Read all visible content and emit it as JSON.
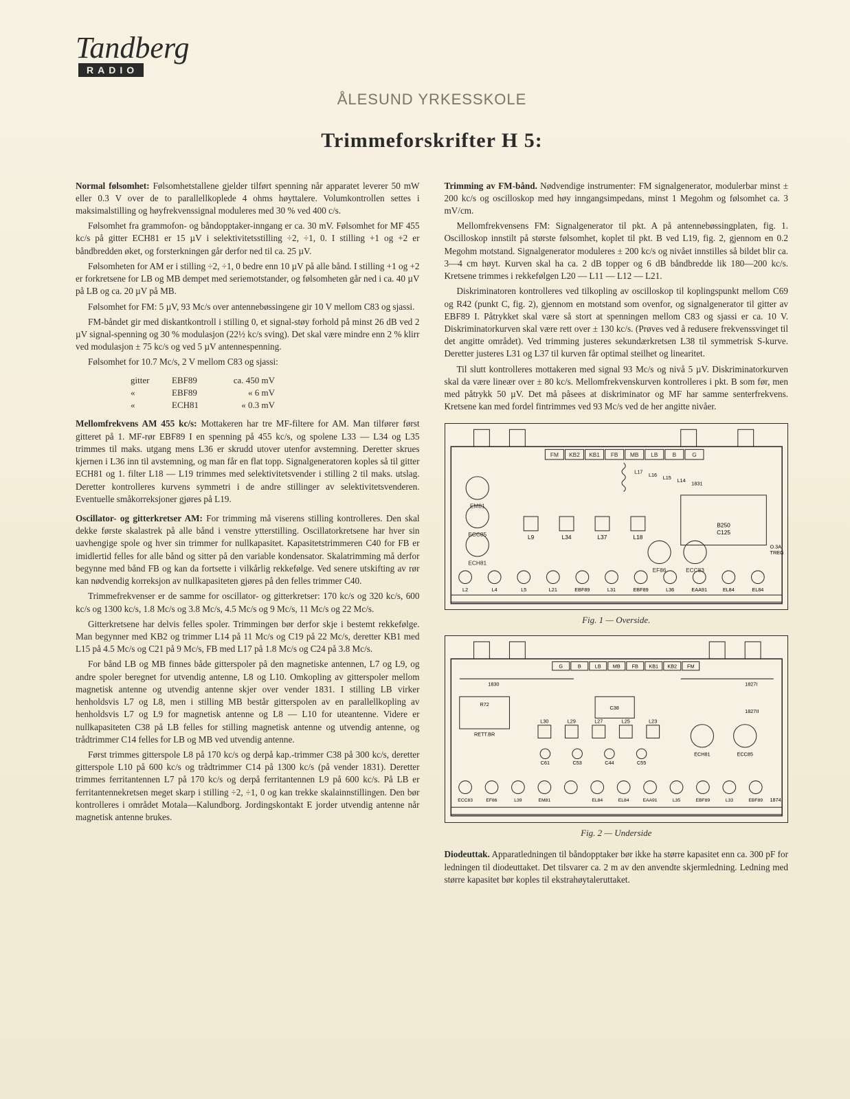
{
  "logo": {
    "brand": "Tandberg",
    "sub": "RADIO"
  },
  "school": "ÅLESUND YRKESSKOLE",
  "title": "Trimmeforskrifter H 5:",
  "left": {
    "h1": "Normal følsomhet:",
    "p1a": " Følsomhetstallene gjelder tilført spenning når apparatet leverer 50 mW eller 0.3 V over de to parallellkoplede 4 ohms høyttalere. Volumkontrollen settes i maksimalstilling og høyfrekvenssignal moduleres med 30 % ved 400 c/s.",
    "p1b": "Følsomhet fra grammofon- og båndopptaker-inngang er ca. 30 mV. Følsomhet for MF 455 kc/s på gitter ECH81 er 15 µV i selektivitetsstilling ÷2, ÷1, 0. I stilling +1 og +2 er båndbredden øket, og forsterkningen går derfor ned til ca. 25 µV.",
    "p1c": "Følsomheten for AM er i stilling ÷2, ÷1, 0 bedre enn 10 µV på alle bånd. I stilling +1 og +2 er forkretsene for LB og MB dempet med seriemotstander, og følsomheten går ned i ca. 40 µV på LB og ca. 20 µV på MB.",
    "p1d": "Følsomhet for FM: 5 µV, 93 Mc/s over antennebøssingene gir 10 V mellom C83 og sjassi.",
    "p1e": "FM-båndet gir med diskantkontroll i stilling 0, et signal-støy forhold på minst 26 dB ved 2 µV signal-spenning og 30 % modulasjon (22½ kc/s sving). Det skal være mindre enn 2 % klirr ved modulasjon ± 75 kc/s og ved 5 µV antennespenning.",
    "p1f": "Følsomhet for 10.7 Mc/s, 2 V mellom C83 og sjassi:",
    "tbl": [
      [
        "gitter",
        "EBF89",
        "ca. 450 mV"
      ],
      [
        "«",
        "EBF89",
        "«    6 mV"
      ],
      [
        "«",
        "ECH81",
        "«   0.3 mV"
      ]
    ],
    "h2": "Mellomfrekvens AM 455 kc/s:",
    "p2": " Mottakeren har tre MF-filtere for AM. Man tilfører først gitteret på 1. MF-rør EBF89 I en spenning på 455 kc/s, og spolene L33 — L34 og L35 trimmes til maks. utgang mens L36 er skrudd utover utenfor avstemning. Deretter skrues kjernen i L36 inn til avstemning, og man får en flat topp. Signalgeneratoren koples så til gitter ECH81 og 1. filter L18 — L19 trimmes med selektivitetsvender i stilling 2 til maks. utslag. Deretter kontrolleres kurvens symmetri i de andre stillinger av selektivitetsvenderen. Eventuelle småkorreksjoner gjøres på L19.",
    "h3": "Oscillator- og gitterkretser AM:",
    "p3a": " For trimming må viserens stilling kontrolleres. Den skal dekke første skalastrek på alle bånd i venstre ytterstilling. Oscillatorkretsene har hver sin uavhengige spole og hver sin trimmer for nullkapasitet. Kapasitetstrimmeren C40 for FB er imidlertid felles for alle bånd og sitter på den variable kondensator. Skalatrimming må derfor begynne med bånd FB og kan da fortsette i vilkårlig rekkefølge. Ved senere utskifting av rør kan nødvendig korreksjon av nullkapasiteten gjøres på den felles trimmer C40.",
    "p3b": "Trimmefrekvenser er de samme for oscillator- og gitterkretser: 170 kc/s og 320 kc/s, 600 kc/s og 1300 kc/s, 1.8 Mc/s og 3.8 Mc/s, 4.5 Mc/s og 9 Mc/s, 11 Mc/s og 22 Mc/s.",
    "p3c": "Gitterkretsene har delvis felles spoler. Trimmingen bør derfor skje i bestemt rekkefølge. Man begynner med KB2 og trimmer L14 på 11 Mc/s og C19 på 22 Mc/s, deretter KB1 med L15 på 4.5 Mc/s og C21 på 9 Mc/s, FB med L17 på 1.8 Mc/s og C24 på 3.8 Mc/s.",
    "p3d": "For bånd LB og MB finnes både gitterspoler på den magnetiske antennen, L7 og L9, og andre spoler beregnet for utvendig antenne, L8 og L10. Omkopling av gitterspoler mellom magnetisk antenne og utvendig antenne skjer over vender 1831. I stilling LB virker henholdsvis L7 og L8, men i stilling MB består gitterspolen av en parallellkopling av henholdsvis L7 og L9 for magnetisk antenne og L8 — L10 for uteantenne. Videre er nullkapasiteten C38 på LB felles for stilling magnetisk antenne og utvendig antenne, og trådtrimmer C14 felles for LB og MB ved utvendig antenne.",
    "p3e": "Først trimmes gitterspole L8 på 170 kc/s og derpå kap.-trimmer C38 på 300 kc/s, deretter gitterspole L10 på 600 kc/s og trådtrimmer C14 på 1300 kc/s (på vender 1831). Deretter trimmes ferritantennen L7 på 170 kc/s og derpå ferritantennen L9 på 600 kc/s. På LB er ferritantennekretsen meget skarp i stilling ÷2, ÷1, 0 og kan trekke skalainnstillingen. Den bør kontrolleres i området Motala—Kalundborg. Jordingskontakt E jorder utvendig antenne når magnetisk antenne brukes."
  },
  "right": {
    "h1": "Trimming av FM-bånd.",
    "p1a": " Nødvendige instrumenter: FM signalgenerator, modulerbar minst ± 200 kc/s og oscilloskop med høy inngangsimpedans, minst 1 Megohm og følsomhet ca. 3 mV/cm.",
    "p1b": "Mellomfrekvensens FM: Signalgenerator til pkt. A på antennebøssingplaten, fig. 1. Oscilloskop innstilt på største følsomhet, koplet til pkt. B ved L19, fig. 2, gjennom en 0.2 Megohm motstand. Signalgenerator moduleres ± 200 kc/s og nivået innstilles så bildet blir ca. 3—4 cm høyt. Kurven skal ha ca. 2 dB topper og 6 dB båndbredde lik 180—200 kc/s. Kretsene trimmes i rekkefølgen L20 — L11 — L12 — L21.",
    "p1c": "Diskriminatoren kontrolleres ved tilkopling av oscilloskop til koplingspunkt mellom C69 og R42 (punkt C, fig. 2), gjennom en motstand som ovenfor, og signalgenerator til gitter av EBF89 I. Påtrykket skal være så stort at spenningen mellom C83 og sjassi er ca. 10 V. Diskriminatorkurven skal være rett over ± 130 kc/s. (Prøves ved å redusere frekvenssvinget til det angitte området). Ved trimming justeres sekundærkretsen L38 til symmetrisk S-kurve. Deretter justeres L31 og L37 til kurven får optimal steilhet og linearitet.",
    "p1d": "Til slutt kontrolleres mottakeren med signal 93 Mc/s og nivå 5 µV. Diskriminatorkurven skal da være lineær over ± 80 kc/s. Mellomfrekvenskurven kontrolleres i pkt. B som før, men med påtrykk 50 µV. Det må påsees at diskriminator og MF har samme senterfrekvens. Kretsene kan med fordel fintrimmes ved 93 Mc/s ved de her angitte nivåer.",
    "fig1cap": "Fig. 1 — Overside.",
    "fig2cap": "Fig. 2 — Underside",
    "h2": "Diodeuttak.",
    "p2": " Apparatledningen til båndopptaker bør ikke ha større kapasitet enn ca. 300 pF for ledningen til diodeuttaket. Det tilsvarer ca. 2 m av den anvendte skjermledning. Ledning med større kapasitet bør koples til ekstrahøytaleruttaket."
  },
  "fig1": {
    "tabs": [
      "FM",
      "KB2",
      "KB1",
      "FB",
      "MB",
      "LB",
      "B",
      "G"
    ],
    "tubes": [
      "EM81",
      "ECC85",
      "ECH81",
      "EF86",
      "ECC83"
    ],
    "parts": [
      "L17",
      "L16",
      "L15",
      "L14",
      "1831",
      "B250 C125",
      "L9",
      "L34",
      "L37",
      "L18",
      "O.3A TREG",
      "L2",
      "L4",
      "L5",
      "L21",
      "EBF89",
      "L31",
      "EBF89",
      "L36",
      "EAA91",
      "EL84",
      "EL84"
    ]
  },
  "fig2": {
    "tabs": [
      "G",
      "B",
      "LB",
      "MB",
      "FB",
      "KB1",
      "KB2",
      "FM"
    ],
    "parts": [
      "1830",
      "1827I",
      "R72",
      "RETT.BR",
      "C38",
      "1827II",
      "L30",
      "L29",
      "L27",
      "L25",
      "L23",
      "ECH81",
      "ECC85",
      "C61",
      "C53",
      "C44",
      "C55",
      "ECC83",
      "EF86",
      "L39",
      "EM81",
      "EL84",
      "EL84",
      "EAA91",
      "L35",
      "EBF89",
      "L33",
      "EBF89",
      "1874"
    ]
  }
}
